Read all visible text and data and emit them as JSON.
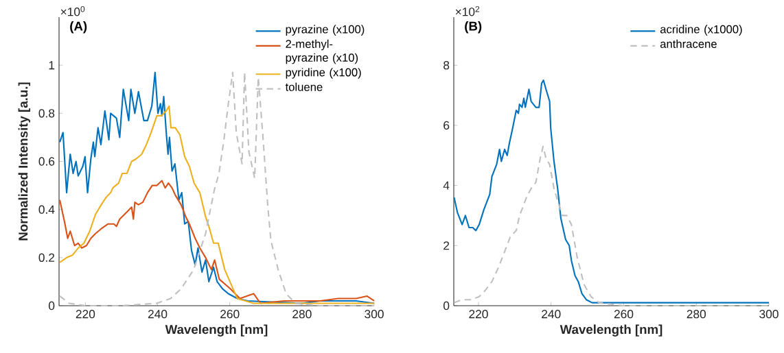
{
  "chart_data": [
    {
      "type": "line",
      "title": "(A)",
      "xlabel": "Wavelength [nm]",
      "ylabel": "Normalized Intensity [a.u.]",
      "annotations": [
        "×10$^{0}$"
      ],
      "xlim": [
        212.7,
        300
      ],
      "ylim": [
        0,
        1.2
      ],
      "xticks": [
        220,
        240,
        260,
        280,
        300
      ],
      "yticks": [
        0,
        0.2,
        0.4,
        0.6,
        0.8,
        1
      ],
      "legend": "top right",
      "marker": "none",
      "line_style": "solid",
      "series": [
        {
          "name": "pyrazine (x100)",
          "color": "#0072bd",
          "x": [
            212.9,
            213.8,
            214.8,
            215.8,
            216.6,
            217.4,
            218.0,
            219.3,
            219.9,
            220.6,
            221.5,
            222.2,
            222.6,
            223.5,
            224.3,
            225.4,
            226.5,
            227.0,
            228.6,
            229.5,
            230.5,
            232.0,
            232.6,
            233.7,
            234.7,
            236.2,
            237.2,
            238.4,
            239.3,
            240.1,
            240.8,
            241.2,
            241.7,
            242.4,
            242.9,
            243.3,
            244.0,
            244.8,
            245.9,
            246.7,
            247.5,
            248.5,
            249.4,
            250.4,
            251.2,
            252.3,
            253.3,
            254.2,
            255.5,
            256.5,
            258,
            259.6,
            262.1,
            265,
            270,
            275,
            280,
            285,
            290,
            295,
            300
          ],
          "values": [
            0.68,
            0.72,
            0.47,
            0.63,
            0.55,
            0.6,
            0.54,
            0.58,
            0.62,
            0.47,
            0.61,
            0.68,
            0.62,
            0.74,
            0.67,
            0.81,
            0.69,
            0.8,
            0.78,
            0.7,
            0.9,
            0.77,
            0.9,
            0.8,
            0.89,
            0.77,
            0.77,
            0.83,
            0.97,
            0.8,
            0.84,
            0.79,
            0.87,
            0.72,
            0.63,
            0.7,
            0.56,
            0.59,
            0.44,
            0.47,
            0.34,
            0.35,
            0.23,
            0.17,
            0.24,
            0.14,
            0.19,
            0.1,
            0.16,
            0.1,
            0.07,
            0.05,
            0.03,
            0.02,
            null,
            null,
            0.01,
            0.02,
            0.02,
            0.02,
            0.01
          ]
        },
        {
          "name": "2-methyl-pyrazine (x10)",
          "color": "#d95319",
          "x": [
            212.9,
            214.2,
            215.1,
            215.8,
            217.0,
            218.0,
            219.0,
            220.3,
            221.5,
            222.8,
            224.4,
            226.3,
            227.9,
            228.6,
            229.5,
            231.5,
            232.8,
            233.3,
            233.7,
            234.7,
            235.9,
            237.2,
            238.5,
            239.8,
            241.2,
            242.1,
            243.0,
            244.0,
            244.9,
            246.5,
            247.8,
            248.8,
            250.4,
            251.7,
            253.3,
            254.9,
            255.8,
            257.1,
            260.2,
            262.8,
            266.6,
            268.5,
            275,
            285,
            290,
            295,
            298,
            300
          ],
          "values": [
            0.44,
            0.35,
            0.28,
            0.31,
            0.25,
            0.26,
            0.24,
            0.25,
            0.28,
            0.3,
            0.32,
            0.34,
            0.34,
            0.33,
            0.36,
            0.39,
            0.41,
            0.36,
            0.43,
            0.42,
            0.43,
            0.47,
            0.5,
            0.5,
            0.52,
            0.49,
            0.51,
            0.49,
            0.46,
            0.42,
            0.37,
            0.34,
            0.28,
            0.24,
            0.2,
            0.15,
            0.19,
            0.11,
            0.07,
            0.03,
            0.05,
            0.01,
            0.02,
            0.02,
            0.03,
            0.03,
            0.04,
            0.02
          ]
        },
        {
          "name": "pyridine (x100)",
          "color": "#edb120",
          "x": [
            212.9,
            214.8,
            216.4,
            218.0,
            219.6,
            221.2,
            222.8,
            224.4,
            225.7,
            227.0,
            227.6,
            229.2,
            230.2,
            231.5,
            232.8,
            234.0,
            235.6,
            236.9,
            238.2,
            239.8,
            241.1,
            242.4,
            243.2,
            243.7,
            244.9,
            246.2,
            247.5,
            248.8,
            250.1,
            251.7,
            253.3,
            254.2,
            255.5,
            256.8,
            258.6,
            260.9,
            262.1,
            266.6,
            275,
            285,
            300
          ],
          "values": [
            0.18,
            0.2,
            0.21,
            0.24,
            0.26,
            0.31,
            0.38,
            0.42,
            0.45,
            0.47,
            0.49,
            0.51,
            0.55,
            0.55,
            0.6,
            0.61,
            0.63,
            0.67,
            0.72,
            0.79,
            0.79,
            0.81,
            0.83,
            0.74,
            0.74,
            0.71,
            0.62,
            0.58,
            0.51,
            0.47,
            0.37,
            0.33,
            0.26,
            0.26,
            0.15,
            0.07,
            0.03,
            0.01,
            0.01,
            0.01,
            0.01
          ]
        },
        {
          "name": "toluene",
          "color": "#c0c0c0",
          "line_style": "dashed",
          "x": [
            212.9,
            215.5,
            220,
            230,
            239.8,
            243.6,
            246.5,
            250,
            253.3,
            255.7,
            257,
            258.3,
            259.6,
            260.8,
            261.8,
            263.4,
            264.1,
            265.3,
            266.9,
            267.9,
            269.2,
            270.5,
            271.4,
            273.4,
            275.6,
            278.2,
            285,
            300
          ],
          "values": [
            0.04,
            0.01,
            0.0,
            0.0,
            0.01,
            0.03,
            0.07,
            0.15,
            0.3,
            0.48,
            0.55,
            0.68,
            0.84,
            0.97,
            0.72,
            0.59,
            0.97,
            0.64,
            0.53,
            0.95,
            0.7,
            0.42,
            0.27,
            0.15,
            0.05,
            0.01,
            0.0,
            0.0
          ]
        }
      ]
    },
    {
      "type": "line",
      "title": "(B)",
      "xlabel": "Wavelength [nm]",
      "annotations": [
        "×10$^{2}$"
      ],
      "xlim": [
        213.2,
        300
      ],
      "ylim": [
        0,
        9.6
      ],
      "xticks": [
        220,
        240,
        260,
        280,
        300
      ],
      "yticks": [
        0,
        2,
        4,
        6,
        8
      ],
      "legend": "top right",
      "marker": "none",
      "line_style": "solid",
      "series": [
        {
          "name": "acridine (x1000)",
          "color": "#0072bd",
          "x": [
            213.3,
            214.2,
            215.5,
            216.4,
            217.4,
            218.4,
            219.3,
            220.2,
            221.5,
            223.1,
            223.7,
            225.0,
            225.8,
            226.3,
            227.2,
            227.9,
            228.5,
            229.4,
            230.4,
            231.0,
            231.3,
            232.0,
            232.5,
            232.9,
            233.9,
            234.5,
            235.8,
            236.7,
            237.4,
            237.9,
            238.6,
            239.6,
            239.9,
            240.8,
            241.8,
            242.7,
            244.0,
            245.0,
            245.6,
            246.6,
            247.5,
            248.5,
            249.7,
            251.3,
            253.5,
            255,
            260,
            265,
            270,
            275,
            280,
            285,
            290,
            295,
            300
          ],
          "values": [
            3.6,
            3.1,
            2.7,
            3.0,
            2.6,
            2.6,
            2.5,
            2.7,
            3.2,
            3.7,
            4.3,
            4.7,
            5.2,
            4.8,
            5.2,
            5.0,
            5.4,
            5.9,
            6.5,
            6.4,
            6.7,
            6.6,
            6.9,
            6.6,
            7.2,
            6.8,
            6.6,
            6.6,
            7.4,
            7.5,
            7.2,
            6.8,
            5.9,
            4.8,
            3.9,
            2.9,
            2.2,
            2.0,
            1.5,
            1.0,
            0.8,
            0.4,
            0.2,
            0.1,
            0.1,
            0.1,
            0.1,
            0.1,
            0.1,
            0.1,
            0.1,
            0.1,
            0.1,
            0.1,
            0.1
          ]
        },
        {
          "name": "anthracene",
          "color": "#c0c0c0",
          "line_style": "dashed",
          "x": [
            213.3,
            215.5,
            218.0,
            220.2,
            221.8,
            223.7,
            225.6,
            227.2,
            228.8,
            230.4,
            231.3,
            232.3,
            233.2,
            234.5,
            235.8,
            237.0,
            237.8,
            238.6,
            239.6,
            240.8,
            241.8,
            243.1,
            244.3,
            245.6,
            247.2,
            249.1,
            251.0,
            253.2,
            260,
            280,
            300
          ],
          "values": [
            0.1,
            0.2,
            0.2,
            0.3,
            0.5,
            0.8,
            1.3,
            1.8,
            2.3,
            2.5,
            3.0,
            3.3,
            3.6,
            3.9,
            4.1,
            4.9,
            5.3,
            4.9,
            4.7,
            3.9,
            3.5,
            3.0,
            3.0,
            2.7,
            1.6,
            0.7,
            0.3,
            0.1,
            0.0,
            0.0,
            0.0
          ]
        }
      ]
    }
  ]
}
